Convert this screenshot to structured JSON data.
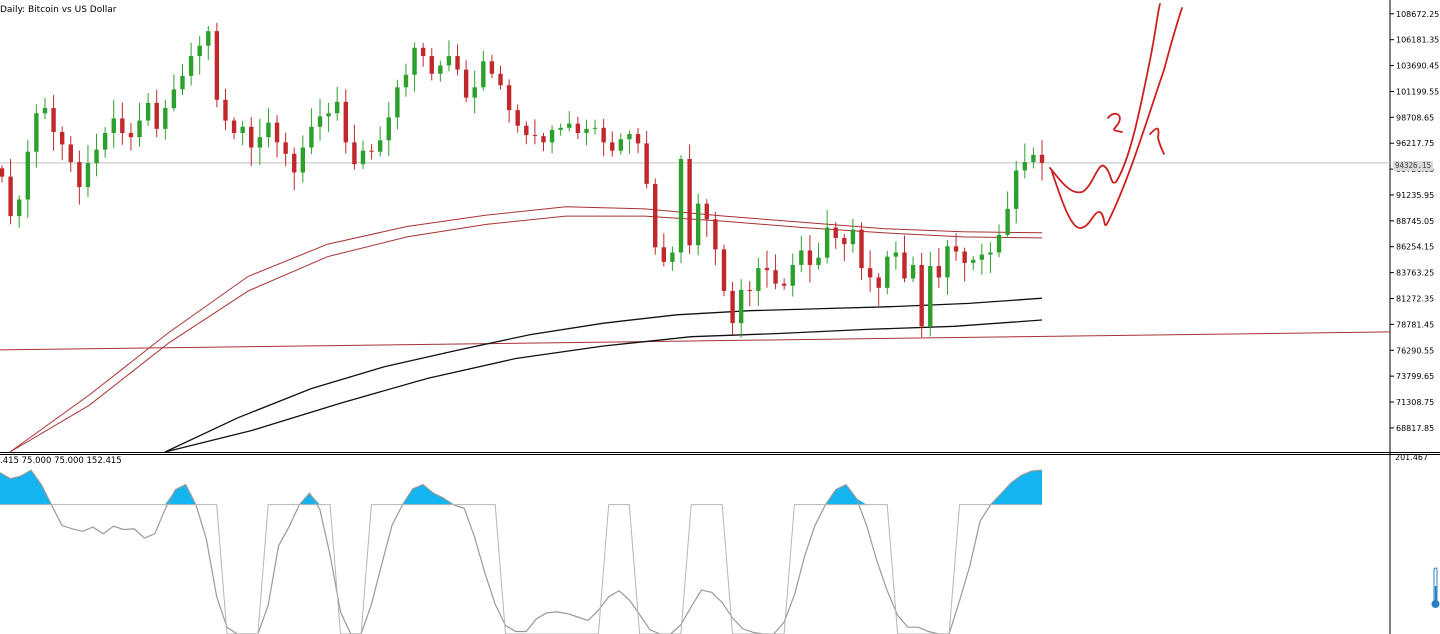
{
  "header": {
    "title": "Daily:  Bitcoin vs US Dollar"
  },
  "indicator": {
    "params_label": ".415 75.000 75.000 152.415",
    "max_label": "201.467"
  },
  "price_axis": {
    "current_price_label": "94326.15"
  },
  "chart_data": {
    "type": "candlestick",
    "title": "Daily:  Bitcoin vs US Dollar",
    "symbol": "Bitcoin vs US Dollar",
    "timeframe": "Daily",
    "ylim": [
      66500,
      110000
    ],
    "y_ticks": [
      108672.25,
      106181.35,
      103690.45,
      101199.55,
      98708.65,
      96217.75,
      93726.85,
      91235.95,
      88745.05,
      86254.15,
      83763.25,
      81272.35,
      78781.45,
      76290.55,
      73799.65,
      71308.75,
      68817.85
    ],
    "current_price": 94326.15,
    "horizontal_line_price": 76900,
    "colors": {
      "up": "#2ca02c",
      "down": "#c0282c",
      "ma_upper": "#a83232",
      "ma_lower": "#111111",
      "oscillator_fill": "#12b5f0",
      "oscillator_line": "#999999",
      "annotation": "#cc2020",
      "current_price_line": "#c0c0c0"
    },
    "candle_closes": [
      93000,
      89200,
      90800,
      95400,
      99100,
      99600,
      97300,
      96100,
      94400,
      92000,
      94300,
      95600,
      97200,
      98600,
      97200,
      96800,
      98400,
      100100,
      97600,
      99600,
      101400,
      102700,
      104600,
      105600,
      107000,
      100400,
      98400,
      97200,
      97800,
      95800,
      96800,
      98200,
      96300,
      95200,
      93400,
      95800,
      97800,
      98800,
      99100,
      100200,
      96300,
      94200,
      95500,
      95400,
      96500,
      98700,
      101600,
      102800,
      105400,
      104600,
      102900,
      103700,
      104600,
      103300,
      100600,
      101600,
      104100,
      102900,
      101800,
      99400,
      97900,
      97000,
      96900,
      96300,
      97500,
      97700,
      98100,
      97200,
      97600,
      97700,
      96300,
      95500,
      96600,
      97100,
      96200,
      92300,
      86200,
      84800,
      85700,
      94700,
      86400,
      90400,
      88900,
      86000,
      82000,
      78900,
      82100,
      82000,
      84200,
      84000,
      82700,
      82500,
      84500,
      85900,
      84500,
      85200,
      88100,
      87100,
      86500,
      87900,
      84200,
      83300,
      82300,
      85300,
      85700,
      83200,
      84500,
      78600,
      84400,
      83300,
      86300,
      85800,
      84700,
      85000,
      85500,
      85700,
      87400,
      89900,
      93600,
      94400,
      95100,
      94326
    ],
    "moving_averages": [
      {
        "label": "upper-red",
        "values": [
          66500,
          72000,
          78000,
          83400,
          86500,
          88200,
          89300,
          90100,
          89900,
          89200,
          88600,
          88000,
          87700,
          87600
        ]
      },
      {
        "label": "lower-red",
        "values": [
          66500,
          71000,
          77000,
          82000,
          85300,
          87200,
          88400,
          89200,
          89200,
          88700,
          88100,
          87600,
          87200,
          87100
        ]
      },
      {
        "label": "upper-black",
        "values": [
          66500,
          69800,
          72600,
          74700,
          76300,
          77800,
          78900,
          79700,
          80100,
          80300,
          80500,
          80800,
          81300
        ]
      },
      {
        "label": "lower-black",
        "values": [
          66500,
          68600,
          71200,
          73600,
          75500,
          76700,
          77600,
          77900,
          78300,
          78600,
          79200
        ]
      }
    ],
    "oscillator": {
      "ylim": [
        0,
        201.467
      ],
      "levels": [
        75,
        152.415
      ],
      "values": [
        190,
        183,
        186,
        193,
        176,
        152,
        128,
        124,
        121,
        126,
        118,
        127,
        123,
        124,
        113,
        118,
        147,
        170,
        176,
        152,
        112,
        44,
        8,
        0,
        0,
        0,
        34,
        104,
        126,
        152,
        166,
        147,
        93,
        26,
        0,
        0,
        35,
        82,
        128,
        152,
        171,
        176,
        166,
        160,
        152,
        148,
        114,
        72,
        35,
        10,
        3,
        3,
        18,
        25,
        26,
        24,
        20,
        16,
        28,
        44,
        51,
        40,
        23,
        5,
        0,
        0,
        11,
        32,
        52,
        49,
        37,
        19,
        6,
        2,
        0,
        0,
        14,
        46,
        92,
        128,
        152,
        170,
        176,
        160,
        128,
        86,
        51,
        22,
        8,
        8,
        3,
        0,
        0,
        39,
        80,
        133,
        152,
        165,
        178,
        187,
        192,
        193
      ]
    }
  }
}
